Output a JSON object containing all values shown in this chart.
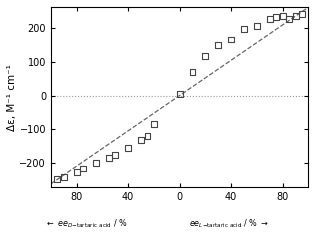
{
  "title": "",
  "ylabel": "Δε, M⁻¹ cm⁻¹",
  "xlim": [
    -100,
    100
  ],
  "ylim": [
    -270,
    260
  ],
  "yticks": [
    -200,
    -100,
    0,
    100,
    200
  ],
  "xticks": [
    -80,
    -40,
    0,
    40,
    80
  ],
  "xtick_labels": [
    "80",
    "40",
    "0",
    "40",
    "80"
  ],
  "scatter_x": [
    -95,
    -90,
    -80,
    -75,
    -65,
    -55,
    -50,
    -40,
    -30,
    -25,
    -20,
    0,
    10,
    20,
    30,
    40,
    50,
    60,
    70,
    75,
    80,
    85,
    90,
    95
  ],
  "scatter_y": [
    -245,
    -240,
    -225,
    -215,
    -200,
    -185,
    -175,
    -155,
    -130,
    -120,
    -85,
    5,
    70,
    115,
    150,
    165,
    195,
    205,
    225,
    230,
    235,
    225,
    235,
    240
  ],
  "dashed_line_x": [
    -100,
    100
  ],
  "dashed_line_y": [
    -260,
    260
  ],
  "background_color": "#ffffff",
  "scatter_edgecolor": "#444444",
  "dashed_color": "#666666",
  "dotted_color": "#999999"
}
